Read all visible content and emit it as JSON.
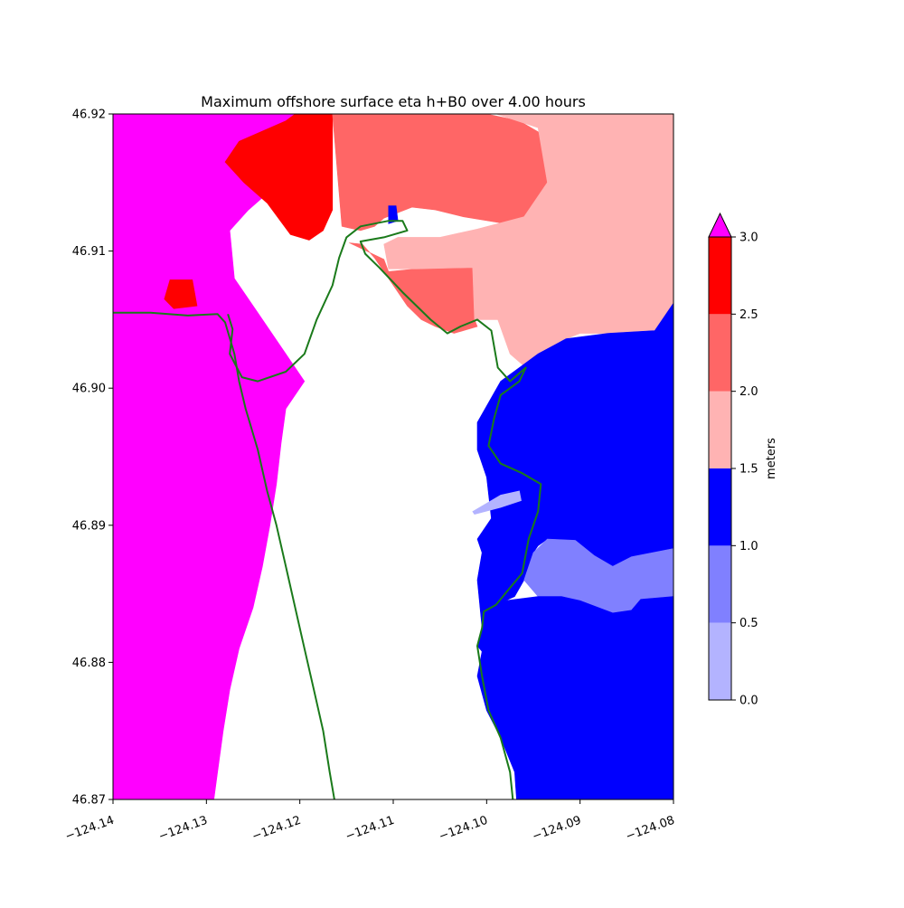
{
  "chart_data": {
    "type": "heatmap",
    "title": "Maximum offshore surface eta h+B0 over 4.00 hours",
    "xlabel": "",
    "ylabel": "",
    "xlim": [
      -124.14,
      -124.08
    ],
    "ylim": [
      46.87,
      46.92
    ],
    "x_ticks": [
      -124.14,
      -124.13,
      -124.12,
      -124.11,
      -124.1,
      -124.09,
      -124.08
    ],
    "x_tick_labels": [
      "−124.14",
      "−124.13",
      "−124.12",
      "−124.11",
      "−124.10",
      "−124.09",
      "−124.08"
    ],
    "y_ticks": [
      46.87,
      46.88,
      46.89,
      46.9,
      46.91,
      46.92
    ],
    "y_tick_labels": [
      "46.87",
      "46.88",
      "46.89",
      "46.90",
      "46.91",
      "46.92"
    ],
    "colorbar": {
      "label": "meters",
      "extend": "max",
      "ticks": [
        0.0,
        0.5,
        1.0,
        1.5,
        2.0,
        2.5,
        3.0
      ],
      "tick_labels": [
        "0.0",
        "0.5",
        "1.0",
        "1.5",
        "2.0",
        "2.5",
        "3.0"
      ],
      "levels": [
        {
          "range": [
            0.0,
            0.5
          ],
          "color": "#b3b3ff"
        },
        {
          "range": [
            0.5,
            1.0
          ],
          "color": "#8080ff"
        },
        {
          "range": [
            1.0,
            1.5
          ],
          "color": "#0000ff"
        },
        {
          "range": [
            1.5,
            2.0
          ],
          "color": "#ffb3b3"
        },
        {
          "range": [
            2.0,
            2.5
          ],
          "color": "#ff6666"
        },
        {
          "range": [
            2.5,
            3.0
          ],
          "color": "#ff0000"
        }
      ],
      "over_color": "#ff00ff"
    },
    "regions": [
      {
        "name": "ocean-west",
        "level": ">3.0",
        "poly": [
          [
            -124.14,
            46.92
          ],
          [
            -124.1203,
            46.92
          ],
          [
            -124.1203,
            46.9175
          ],
          [
            -124.1215,
            46.9165
          ],
          [
            -124.123,
            46.9145
          ],
          [
            -124.1255,
            46.913
          ],
          [
            -124.1275,
            46.9115
          ],
          [
            -124.127,
            46.908
          ],
          [
            -124.1245,
            46.9055
          ],
          [
            -124.1215,
            46.9025
          ],
          [
            -124.1195,
            46.9005
          ],
          [
            -124.1215,
            46.8985
          ],
          [
            -124.122,
            46.896
          ],
          [
            -124.1225,
            46.893
          ],
          [
            -124.1232,
            46.89
          ],
          [
            -124.124,
            46.887
          ],
          [
            -124.125,
            46.884
          ],
          [
            -124.1265,
            46.881
          ],
          [
            -124.1275,
            46.878
          ],
          [
            -124.1282,
            46.875
          ],
          [
            -124.1288,
            46.872
          ],
          [
            -124.1292,
            46.87
          ],
          [
            -124.14,
            46.87
          ]
        ]
      },
      {
        "name": "west-spit-max",
        "level": "2.5-3.0",
        "poly": [
          [
            -124.1205,
            46.92
          ],
          [
            -124.1165,
            46.92
          ],
          [
            -124.1165,
            46.913
          ],
          [
            -124.1175,
            46.9115
          ],
          [
            -124.119,
            46.9108
          ],
          [
            -124.121,
            46.9112
          ],
          [
            -124.1235,
            46.9135
          ],
          [
            -124.126,
            46.915
          ],
          [
            -124.128,
            46.9165
          ],
          [
            -124.1265,
            46.918
          ],
          [
            -124.1215,
            46.9195
          ]
        ]
      },
      {
        "name": "patch-west",
        "level": "2.5-3.0",
        "poly": [
          [
            -124.1339,
            46.9079
          ],
          [
            -124.1315,
            46.9079
          ],
          [
            -124.131,
            46.906
          ],
          [
            -124.1335,
            46.9058
          ],
          [
            -124.1345,
            46.9065
          ]
        ]
      },
      {
        "name": "north-2-2.5",
        "level": "2.0-2.5",
        "poly": [
          [
            -124.1165,
            46.92
          ],
          [
            -124.1,
            46.92
          ],
          [
            -124.0965,
            46.9195
          ],
          [
            -124.094,
            46.9185
          ],
          [
            -124.093,
            46.915
          ],
          [
            -124.094,
            46.913
          ],
          [
            -124.098,
            46.912
          ],
          [
            -124.1025,
            46.9125
          ],
          [
            -124.1055,
            46.913
          ],
          [
            -124.108,
            46.9132
          ],
          [
            -124.111,
            46.9124
          ],
          [
            -124.112,
            46.9118
          ],
          [
            -124.1135,
            46.9115
          ],
          [
            -124.1155,
            46.9118
          ]
        ]
      },
      {
        "name": "bay-entrance-2-2.5",
        "level": "2.0-2.5",
        "poly": [
          [
            -124.1147,
            46.9106
          ],
          [
            -124.111,
            46.9094
          ],
          [
            -124.1105,
            46.9085
          ],
          [
            -124.1075,
            46.9087
          ],
          [
            -124.1015,
            46.9088
          ],
          [
            -124.1013,
            46.905
          ],
          [
            -124.101,
            46.9045
          ],
          [
            -124.1035,
            46.904
          ],
          [
            -124.1055,
            46.9045
          ],
          [
            -124.107,
            46.905
          ],
          [
            -124.1085,
            46.906
          ],
          [
            -124.11,
            46.9075
          ],
          [
            -124.112,
            46.9095
          ],
          [
            -124.1133,
            46.9105
          ]
        ]
      },
      {
        "name": "northeast-1.5-2",
        "level": "1.5-2.0",
        "poly": [
          [
            -124.111,
            46.9105
          ],
          [
            -124.1095,
            46.911
          ],
          [
            -124.105,
            46.911
          ],
          [
            -124.101,
            46.9116
          ],
          [
            -124.096,
            46.9125
          ],
          [
            -124.0935,
            46.915
          ],
          [
            -124.0945,
            46.919
          ],
          [
            -124.099,
            46.92
          ],
          [
            -124.08,
            46.92
          ],
          [
            -124.08,
            46.9062
          ],
          [
            -124.082,
            46.9042
          ],
          [
            -124.085,
            46.904
          ],
          [
            -124.0875,
            46.904
          ],
          [
            -124.09,
            46.904
          ],
          [
            -124.0915,
            46.9036
          ],
          [
            -124.0945,
            46.9025
          ],
          [
            -124.0958,
            46.9015
          ],
          [
            -124.0975,
            46.9025
          ],
          [
            -124.0988,
            46.905
          ],
          [
            -124.1013,
            46.905
          ],
          [
            -124.1015,
            46.9088
          ],
          [
            -124.1075,
            46.9087
          ],
          [
            -124.1105,
            46.9087
          ]
        ]
      },
      {
        "name": "bay-mid-1-1.5",
        "level": "1.0-1.5",
        "poly": [
          [
            -124.08,
            46.9062
          ],
          [
            -124.08,
            46.8883
          ],
          [
            -124.0845,
            46.8877
          ],
          [
            -124.0865,
            46.887
          ],
          [
            -124.0885,
            46.8878
          ],
          [
            -124.0905,
            46.8889
          ],
          [
            -124.0935,
            46.889
          ],
          [
            -124.0945,
            46.8885
          ],
          [
            -124.095,
            46.888
          ],
          [
            -124.096,
            46.886
          ],
          [
            -124.097,
            46.8848
          ],
          [
            -124.098,
            46.8845
          ],
          [
            -124.0985,
            46.882
          ],
          [
            -124.0995,
            46.8806
          ],
          [
            -124.1005,
            46.8808
          ],
          [
            -124.101,
            46.8812
          ],
          [
            -124.1005,
            46.8825
          ],
          [
            -124.101,
            46.886
          ],
          [
            -124.1005,
            46.888
          ],
          [
            -124.101,
            46.889
          ],
          [
            -124.0995,
            46.8905
          ],
          [
            -124.1,
            46.8935
          ],
          [
            -124.101,
            46.8955
          ],
          [
            -124.101,
            46.8975
          ],
          [
            -124.0985,
            46.9005
          ],
          [
            -124.0965,
            46.9015
          ],
          [
            -124.0945,
            46.9025
          ],
          [
            -124.0915,
            46.9036
          ],
          [
            -124.087,
            46.904
          ],
          [
            -124.082,
            46.9042
          ]
        ]
      },
      {
        "name": "bay-0.5-1",
        "level": "0.5-1.0",
        "poly": [
          [
            -124.0935,
            46.889
          ],
          [
            -124.0905,
            46.8889
          ],
          [
            -124.0885,
            46.8878
          ],
          [
            -124.0865,
            46.887
          ],
          [
            -124.0845,
            46.8877
          ],
          [
            -124.08,
            46.8883
          ],
          [
            -124.08,
            46.8848
          ],
          [
            -124.0835,
            46.8846
          ],
          [
            -124.0845,
            46.8838
          ],
          [
            -124.0865,
            46.8836
          ],
          [
            -124.09,
            46.8845
          ],
          [
            -124.092,
            46.8848
          ],
          [
            -124.0945,
            46.8848
          ],
          [
            -124.096,
            46.886
          ],
          [
            -124.095,
            46.888
          ]
        ]
      },
      {
        "name": "bay-south-1-1.5",
        "level": "1.0-1.5",
        "poly": [
          [
            -124.1005,
            46.8808
          ],
          [
            -124.0995,
            46.8806
          ],
          [
            -124.0985,
            46.882
          ],
          [
            -124.098,
            46.8845
          ],
          [
            -124.0945,
            46.8848
          ],
          [
            -124.092,
            46.8848
          ],
          [
            -124.09,
            46.8845
          ],
          [
            -124.0865,
            46.8836
          ],
          [
            -124.0845,
            46.8838
          ],
          [
            -124.0835,
            46.8846
          ],
          [
            -124.08,
            46.8848
          ],
          [
            -124.08,
            46.87
          ],
          [
            -124.0968,
            46.87
          ],
          [
            -124.097,
            46.872
          ],
          [
            -124.0985,
            46.8745
          ],
          [
            -124.1,
            46.8765
          ],
          [
            -124.101,
            46.879
          ]
        ]
      },
      {
        "name": "island-0-0.5",
        "level": "0.0-0.5",
        "poly": [
          [
            -124.1015,
            46.891
          ],
          [
            -124.0985,
            46.8922
          ],
          [
            -124.0965,
            46.8925
          ],
          [
            -124.0963,
            46.8918
          ],
          [
            -124.0985,
            46.8913
          ],
          [
            -124.1013,
            46.8908
          ]
        ]
      },
      {
        "name": "north-spit-tip-1-1.5",
        "level": "1.0-1.5",
        "poly": [
          [
            -124.1105,
            46.9133
          ],
          [
            -124.1097,
            46.9133
          ],
          [
            -124.1095,
            46.9122
          ],
          [
            -124.1105,
            46.912
          ]
        ]
      }
    ],
    "coastline": [
      [
        [
          -124.1435,
          46.9055
        ],
        [
          -124.136,
          46.9055
        ],
        [
          -124.132,
          46.9053
        ],
        [
          -124.1288,
          46.9054
        ],
        [
          -124.128,
          46.9048
        ],
        [
          -124.127,
          46.9025
        ],
        [
          -124.1265,
          46.9005
        ],
        [
          -124.1258,
          46.8985
        ],
        [
          -124.1245,
          46.8955
        ],
        [
          -124.1235,
          46.8925
        ],
        [
          -124.1225,
          46.89
        ],
        [
          -124.1215,
          46.887
        ],
        [
          -124.1205,
          46.884
        ],
        [
          -124.1195,
          46.881
        ],
        [
          -124.1185,
          46.878
        ],
        [
          -124.1175,
          46.875
        ],
        [
          -124.1168,
          46.872
        ],
        [
          -124.1163,
          46.87
        ]
      ],
      [
        [
          -124.1277,
          46.9054
        ],
        [
          -124.1272,
          46.9043
        ],
        [
          -124.1275,
          46.9025
        ],
        [
          -124.1262,
          46.9008
        ],
        [
          -124.1245,
          46.9005
        ],
        [
          -124.1215,
          46.9012
        ],
        [
          -124.1195,
          46.9025
        ],
        [
          -124.1182,
          46.905
        ],
        [
          -124.1165,
          46.9075
        ],
        [
          -124.1158,
          46.9095
        ],
        [
          -124.115,
          46.911
        ],
        [
          -124.1135,
          46.9118
        ],
        [
          -124.1105,
          46.9122
        ],
        [
          -124.109,
          46.9122
        ],
        [
          -124.1085,
          46.9115
        ],
        [
          -124.111,
          46.911
        ],
        [
          -124.1135,
          46.9107
        ],
        [
          -124.113,
          46.9098
        ],
        [
          -124.1115,
          46.9088
        ],
        [
          -124.109,
          46.907
        ],
        [
          -124.106,
          46.905
        ],
        [
          -124.1042,
          46.904
        ],
        [
          -124.1028,
          46.9045
        ],
        [
          -124.101,
          46.905
        ],
        [
          -124.0995,
          46.9042
        ],
        [
          -124.0988,
          46.9015
        ],
        [
          -124.0975,
          46.9005
        ],
        [
          -124.0958,
          46.9015
        ],
        [
          -124.0965,
          46.9005
        ],
        [
          -124.0975,
          46.9
        ],
        [
          -124.0985,
          46.8995
        ],
        [
          -124.0992,
          46.8978
        ],
        [
          -124.0998,
          46.8958
        ],
        [
          -124.0985,
          46.8945
        ],
        [
          -124.0962,
          46.8938
        ],
        [
          -124.0942,
          46.893
        ],
        [
          -124.0945,
          46.891
        ],
        [
          -124.0955,
          46.889
        ],
        [
          -124.0962,
          46.8865
        ],
        [
          -124.0978,
          46.8852
        ],
        [
          -124.099,
          46.8842
        ],
        [
          -124.1003,
          46.8837
        ],
        [
          -124.1005,
          46.8825
        ],
        [
          -124.101,
          46.8812
        ],
        [
          -124.1005,
          46.879
        ],
        [
          -124.0998,
          46.8765
        ],
        [
          -124.0985,
          46.8745
        ],
        [
          -124.0975,
          46.872
        ],
        [
          -124.0972,
          46.87
        ]
      ]
    ]
  }
}
